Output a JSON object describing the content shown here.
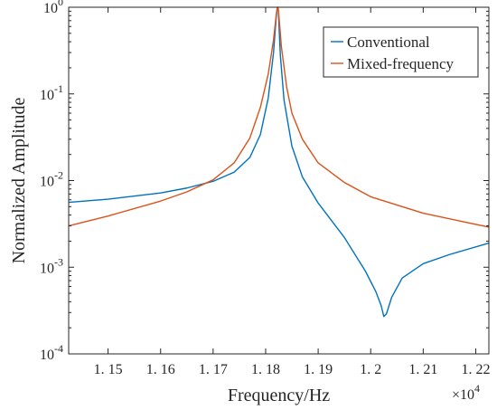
{
  "chart_data": {
    "type": "line",
    "title": "",
    "xlabel": "Frequency/Hz",
    "ylabel": "Normalized Amplitude",
    "x_multiplier": "×10",
    "x_multiplier_exp": "4",
    "xlim": [
      11425,
      12225
    ],
    "ylim": [
      0.0001,
      1
    ],
    "yscale": "log",
    "xticks": [
      {
        "value": 11500,
        "label": "1. 15"
      },
      {
        "value": 11600,
        "label": "1. 16"
      },
      {
        "value": 11700,
        "label": "1. 17"
      },
      {
        "value": 11800,
        "label": "1. 18"
      },
      {
        "value": 11900,
        "label": "1. 19"
      },
      {
        "value": 12000,
        "label": "1. 2"
      },
      {
        "value": 12100,
        "label": "1. 21"
      },
      {
        "value": 12200,
        "label": "1. 22"
      }
    ],
    "yticks": [
      {
        "value": 0.0001,
        "base": "10",
        "exp": "-4"
      },
      {
        "value": 0.001,
        "base": "10",
        "exp": "-3"
      },
      {
        "value": 0.01,
        "base": "10",
        "exp": "-2"
      },
      {
        "value": 0.1,
        "base": "10",
        "exp": "-1"
      },
      {
        "value": 1,
        "base": "10",
        "exp": "0"
      }
    ],
    "grid": false,
    "legend_position": "top-right",
    "series": [
      {
        "name": "Conventional",
        "color": "#0072BD",
        "x": [
          11425,
          11500,
          11600,
          11650,
          11700,
          11740,
          11770,
          11790,
          11805,
          11815,
          11820,
          11822,
          11823,
          11824,
          11825,
          11828,
          11835,
          11850,
          11870,
          11900,
          11950,
          11990,
          12010,
          12020,
          12025,
          12030,
          12040,
          12060,
          12100,
          12150,
          12225
        ],
        "y": [
          0.0056,
          0.0061,
          0.0072,
          0.0082,
          0.0098,
          0.0125,
          0.0185,
          0.034,
          0.09,
          0.3,
          0.75,
          0.98,
          1.0,
          0.95,
          0.7,
          0.28,
          0.085,
          0.025,
          0.011,
          0.0055,
          0.0022,
          0.0009,
          0.00052,
          0.00036,
          0.00027,
          0.00029,
          0.00045,
          0.00075,
          0.0011,
          0.0014,
          0.0019
        ]
      },
      {
        "name": "Mixed-frequency",
        "color": "#D95319",
        "x": [
          11425,
          11500,
          11600,
          11650,
          11700,
          11740,
          11770,
          11790,
          11805,
          11815,
          11820,
          11822,
          11823,
          11824,
          11826,
          11830,
          11840,
          11850,
          11870,
          11900,
          11950,
          12000,
          12100,
          12225
        ],
        "y": [
          0.003,
          0.0039,
          0.0058,
          0.0074,
          0.0102,
          0.016,
          0.031,
          0.07,
          0.17,
          0.42,
          0.8,
          0.98,
          1.0,
          0.96,
          0.7,
          0.35,
          0.12,
          0.06,
          0.03,
          0.016,
          0.0095,
          0.0065,
          0.0042,
          0.0029
        ]
      }
    ]
  }
}
